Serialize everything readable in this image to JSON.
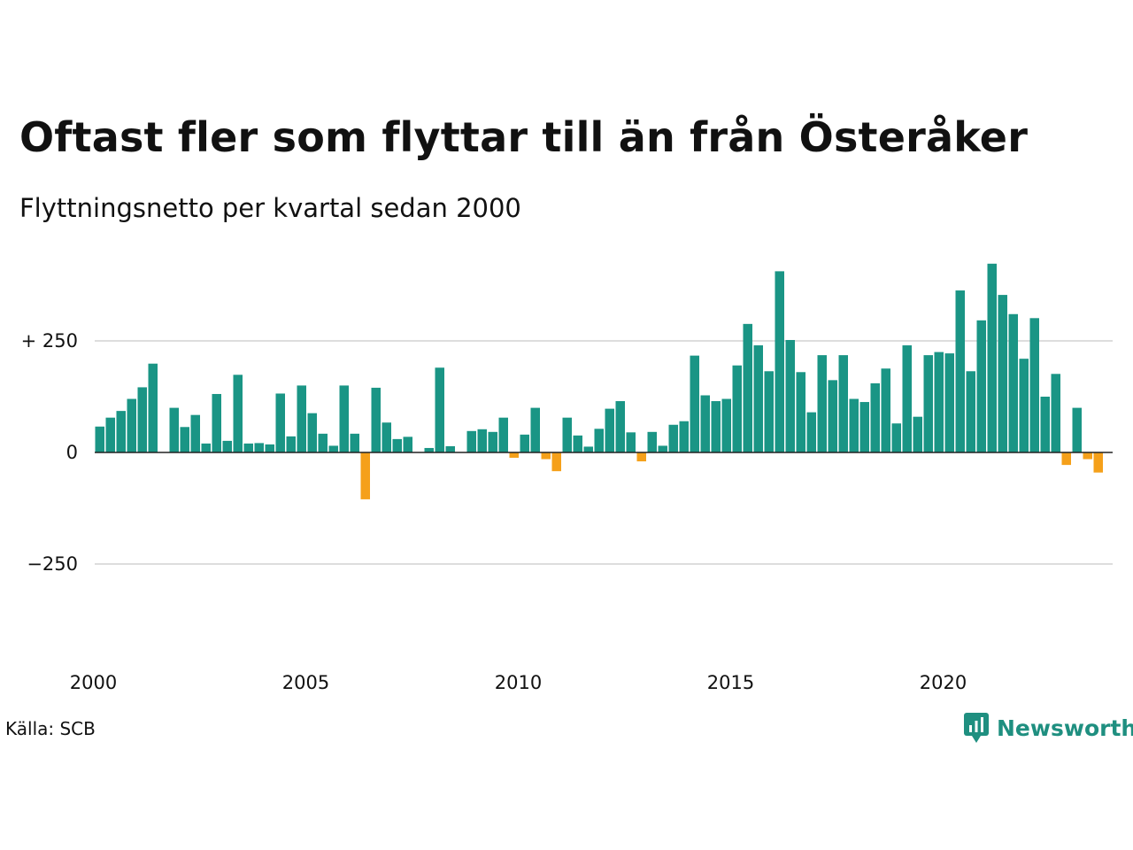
{
  "header": {
    "title": "Oftast fler som flyttar till än från Österåker",
    "subtitle": "Flyttningsnetto per kvartal sedan 2000"
  },
  "footer": {
    "source": "Källa: SCB",
    "brand": "Newsworthy",
    "brand_icon": "newsworthy-logo-icon"
  },
  "colors": {
    "positive": "#1a9585",
    "negative": "#f5a01a",
    "grid": "#dddddd",
    "zero_line": "#222222",
    "brand": "#1f8f80"
  },
  "chart_data": {
    "type": "bar",
    "title": "Oftast fler som flyttar till än från Österåker",
    "subtitle": "Flyttningsnetto per kvartal sedan 2000",
    "xlabel": "",
    "ylabel": "",
    "x_start_year": 2000,
    "points_per_year": 4,
    "x_ticks": [
      "2000",
      "2005",
      "2010",
      "2015",
      "2020"
    ],
    "y_ticks": [
      {
        "value": 250,
        "label": "+ 250"
      },
      {
        "value": 0,
        "label": "0"
      },
      {
        "value": -250,
        "label": "−250"
      }
    ],
    "ylim": [
      -450,
      450
    ],
    "grid": "horizontal",
    "values": [
      58,
      78,
      93,
      120,
      146,
      199,
      0,
      100,
      57,
      84,
      20,
      131,
      26,
      174,
      20,
      21,
      18,
      132,
      36,
      150,
      88,
      42,
      15,
      150,
      42,
      -105,
      145,
      67,
      30,
      35,
      0,
      10,
      190,
      14,
      0,
      48,
      52,
      46,
      78,
      -12,
      40,
      100,
      -15,
      -42,
      78,
      38,
      13,
      53,
      98,
      115,
      45,
      -20,
      46,
      15,
      62,
      70,
      217,
      128,
      115,
      120,
      195,
      288,
      240,
      182,
      406,
      252,
      180,
      90,
      218,
      162,
      218,
      120,
      113,
      155,
      188,
      65,
      240,
      80,
      218,
      225,
      222,
      363,
      182,
      296,
      423,
      353,
      310,
      210,
      301,
      125,
      176,
      -28,
      100,
      -15,
      -45
    ]
  }
}
